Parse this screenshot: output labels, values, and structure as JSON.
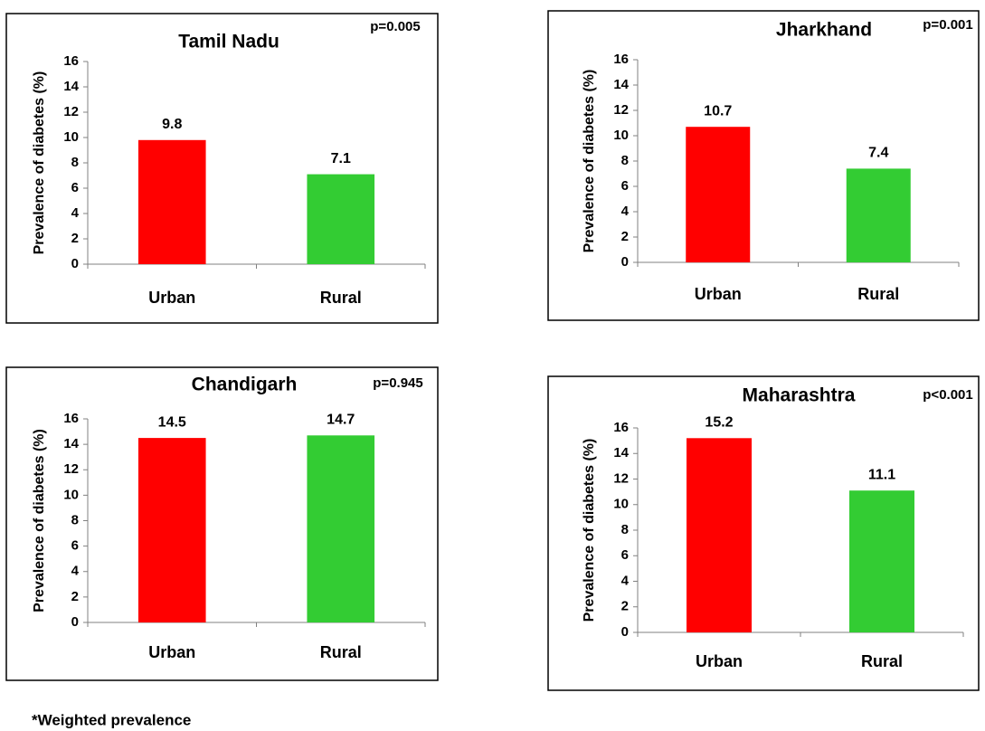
{
  "chart_data": [
    {
      "type": "bar",
      "title": "Tamil Nadu",
      "annotation": "p=0.005",
      "y_label": "Prevalence of diabetes (%)",
      "categories": [
        "Urban",
        "Rural"
      ],
      "values": [
        9.8,
        7.1
      ],
      "colors": [
        "#ff0000",
        "#33cc33"
      ],
      "ylim": [
        0,
        16
      ],
      "yticks": [
        0,
        2,
        4,
        6,
        8,
        10,
        12,
        14,
        16
      ],
      "grid": false
    },
    {
      "type": "bar",
      "title": "Jharkhand",
      "annotation": "p=0.001",
      "y_label": "Prevalence of diabetes (%)",
      "categories": [
        "Urban",
        "Rural"
      ],
      "values": [
        10.7,
        7.4
      ],
      "colors": [
        "#ff0000",
        "#33cc33"
      ],
      "ylim": [
        0,
        16
      ],
      "yticks": [
        0,
        2,
        4,
        6,
        8,
        10,
        12,
        14,
        16
      ],
      "grid": false
    },
    {
      "type": "bar",
      "title": "Chandigarh",
      "annotation": "p=0.945",
      "y_label": "Prevalence of diabetes (%)",
      "categories": [
        "Urban",
        "Rural"
      ],
      "values": [
        14.5,
        14.7
      ],
      "colors": [
        "#ff0000",
        "#33cc33"
      ],
      "ylim": [
        0,
        16
      ],
      "yticks": [
        0,
        2,
        4,
        6,
        8,
        10,
        12,
        14,
        16
      ],
      "grid": false
    },
    {
      "type": "bar",
      "title": "Maharashtra",
      "annotation": "p<0.001",
      "y_label": "Prevalence of diabetes (%)",
      "categories": [
        "Urban",
        "Rural"
      ],
      "values": [
        15.2,
        11.1
      ],
      "colors": [
        "#ff0000",
        "#33cc33"
      ],
      "ylim": [
        0,
        16
      ],
      "yticks": [
        0,
        2,
        4,
        6,
        8,
        10,
        12,
        14,
        16
      ],
      "grid": false
    }
  ],
  "footnote": "*Weighted prevalence"
}
